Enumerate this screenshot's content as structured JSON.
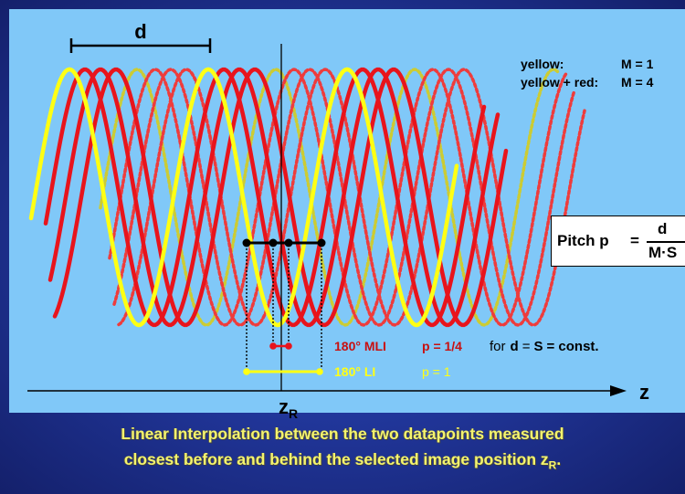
{
  "distance_label": "d",
  "legend": {
    "yellow_label": "yellow:",
    "yellow_value": "M = 1",
    "yellow_red_label": "yellow + red:",
    "yellow_red_value": "M = 4"
  },
  "pitch_formula": {
    "label": "Pitch p",
    "equals": "=",
    "numerator": "d",
    "denominator": "M·S"
  },
  "mli": {
    "name": "180° MLI",
    "p": "p = 1/4",
    "note_prefix": "for",
    "note_d": "d",
    "note_eq1": "=",
    "note_s": "S",
    "note_eq2": "= const."
  },
  "li": {
    "name": "180° LI",
    "p": "p = 1"
  },
  "axis": {
    "label": "z",
    "marker": "z",
    "marker_sub": "R"
  },
  "caption": {
    "line1": "Linear Interpolation between the two datapoints measured",
    "line2": "closest before and behind the selected image position z",
    "line2_sub": "R",
    "line2_end": "."
  },
  "colors": {
    "background": "#80c8f8",
    "frame": "#1d2f8c",
    "yellow": "#ffff14",
    "red": "#e8141c",
    "red_dotted": "#ee3c3c",
    "olive_dotted": "#cccc33",
    "caption": "#f4f46e",
    "mli_text": "#c81010",
    "li_text": "#ffff14"
  }
}
